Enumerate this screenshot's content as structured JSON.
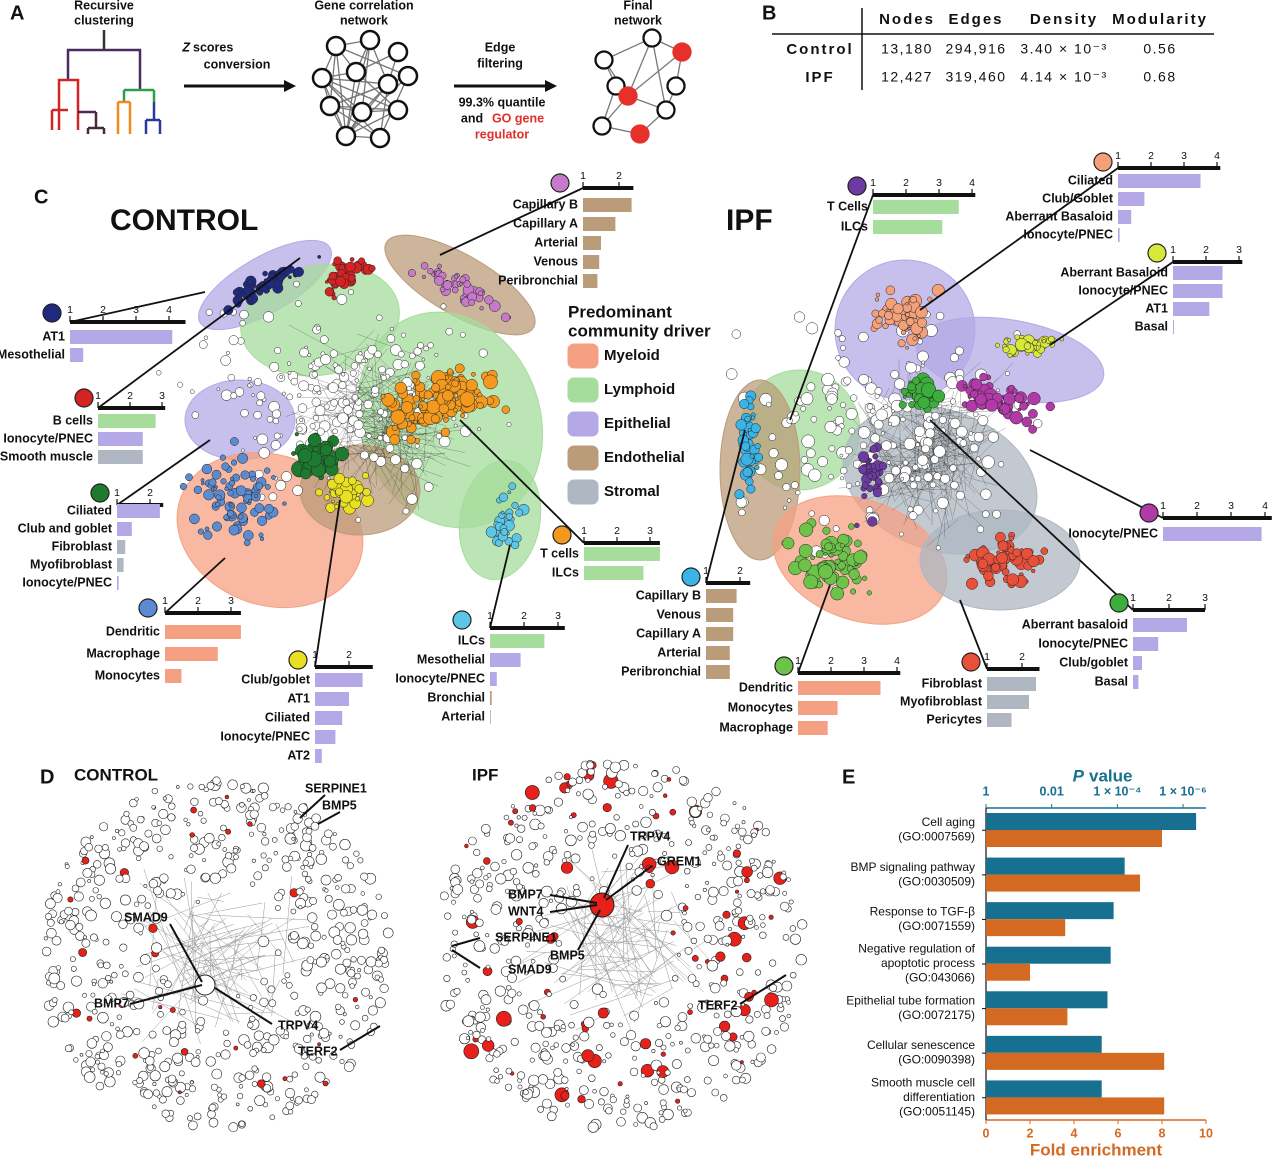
{
  "panel_labels": [
    "A",
    "B",
    "C",
    "D",
    "E"
  ],
  "panel_a": {
    "step1": [
      "Recursive",
      "clustering"
    ],
    "z_symbol": "Z",
    "z_rest": "scores",
    "conversion": "conversion",
    "step2": [
      "Gene correlation",
      "network"
    ],
    "edge_filtering": [
      "Edge",
      "filtering"
    ],
    "quantile": "99.3% quantile",
    "and": "and",
    "go": "GO gene",
    "regulator": "regulator",
    "final": [
      "Final",
      "network"
    ]
  },
  "table": {
    "headers": [
      "Nodes",
      "Edges",
      "Density",
      "Modularity"
    ],
    "rows": [
      [
        "Control",
        "13,180",
        "294,916",
        "3.40 × 10⁻³",
        "0.56"
      ],
      [
        "IPF",
        "12,427",
        "319,460",
        "4.14 × 10⁻³",
        "0.68"
      ]
    ]
  },
  "panel_c": {
    "titles": [
      "CONTROL",
      "IPF"
    ],
    "legend_title": [
      "Predominant",
      "community driver"
    ],
    "legend": [
      {
        "name": "Myeloid",
        "color": "#f6a083"
      },
      {
        "name": "Lymphoid",
        "color": "#a6dc9c"
      },
      {
        "name": "Epithelial",
        "color": "#b4a9e6"
      },
      {
        "name": "Endothelial",
        "color": "#bb9c7a"
      },
      {
        "name": "Stromal",
        "color": "#aeb7c2"
      }
    ]
  },
  "panel_d": {
    "titles": [
      "CONTROL",
      "IPF"
    ],
    "control_genes": [
      "SERPINE1",
      "BMP5",
      "SMAD9",
      "BMP7",
      "TRPV4",
      "TERF2"
    ],
    "ipf_genes": [
      "TRPV4",
      "GREM1",
      "BMP7",
      "WNT4",
      "SERPINE1",
      "SMAD9",
      "BMP5",
      "TERF2"
    ]
  },
  "chart_data": [
    {
      "type": "inset",
      "community_color": "#1f2a80",
      "categories": [
        "AT1",
        "Mesothelial"
      ],
      "values": [
        4.1,
        1.4
      ],
      "colors": [
        "#b4a9e6",
        "#b4a9e6"
      ],
      "xlim": [
        1,
        4.5
      ],
      "xticks": [
        1,
        2,
        3,
        4
      ]
    },
    {
      "type": "inset",
      "community_color": "#d42323",
      "categories": [
        "B cells",
        "Ionocyte/PNEC",
        "Smooth muscle"
      ],
      "values": [
        2.8,
        2.4,
        2.4
      ],
      "colors": [
        "#a6dc9c",
        "#b4a9e6",
        "#aeb7c2"
      ],
      "xlim": [
        1,
        3.1
      ],
      "xticks": [
        1,
        2,
        3
      ]
    },
    {
      "type": "inset",
      "community_color": "#1e7a2e",
      "categories": [
        "Ciliated",
        "Club and goblet",
        "Fibroblast",
        "Myofibroblast",
        "Ionocyte/PNEC"
      ],
      "values": [
        2.3,
        1.45,
        1.25,
        1.2,
        1.05
      ],
      "colors": [
        "#b4a9e6",
        "#b4a9e6",
        "#aeb7c2",
        "#aeb7c2",
        "#b4a9e6"
      ],
      "xlim": [
        1,
        2.4
      ],
      "xticks": [
        1,
        2
      ]
    },
    {
      "type": "inset",
      "community_color": "#5b8bd0",
      "categories": [
        "Dendritic",
        "Macrophage",
        "Monocytes"
      ],
      "values": [
        3.3,
        2.6,
        1.5
      ],
      "colors": [
        "#f6a083",
        "#f6a083",
        "#f6a083"
      ],
      "xlim": [
        1,
        3.3
      ],
      "xticks": [
        1,
        2,
        3
      ]
    },
    {
      "type": "inset",
      "community_color": "#e8e020",
      "categories": [
        "Club/goblet",
        "AT1",
        "Ciliated",
        "Ionocyte/PNEC",
        "AT2"
      ],
      "values": [
        2.4,
        2.0,
        1.8,
        1.6,
        1.2
      ],
      "colors": [
        "#b4a9e6",
        "#b4a9e6",
        "#b4a9e6",
        "#b4a9e6",
        "#b4a9e6"
      ],
      "xlim": [
        1,
        2.7
      ],
      "xticks": [
        1,
        2
      ]
    },
    {
      "type": "inset",
      "community_color": "#5cc6e6",
      "categories": [
        "ILCs",
        "Mesothelial",
        "Ionocyte/PNEC",
        "Bronchial",
        "Arterial"
      ],
      "values": [
        2.6,
        1.9,
        1.2,
        1.05,
        1.02
      ],
      "colors": [
        "#a6dc9c",
        "#b4a9e6",
        "#b4a9e6",
        "#bb9c7a",
        "#bb9c7a"
      ],
      "xlim": [
        1,
        3.2
      ],
      "xticks": [
        1,
        2,
        3
      ]
    },
    {
      "type": "inset",
      "community_color": "#f39a1e",
      "categories": [
        "T cells",
        "ILCs"
      ],
      "values": [
        3.3,
        2.8
      ],
      "colors": [
        "#a6dc9c",
        "#a6dc9c"
      ],
      "xlim": [
        1,
        3.3
      ],
      "xticks": [
        1,
        2,
        3
      ]
    },
    {
      "type": "inset",
      "community_color": "#c77ac9",
      "categories": [
        "Capillary B",
        "Capillary A",
        "Arterial",
        "Venous",
        "Peribronchial"
      ],
      "values": [
        2.35,
        1.9,
        1.5,
        1.45,
        1.4
      ],
      "colors": [
        "#bb9c7a",
        "#bb9c7a",
        "#bb9c7a",
        "#bb9c7a",
        "#bb9c7a"
      ],
      "xlim": [
        1,
        2.4
      ],
      "xticks": [
        1,
        2
      ]
    },
    {
      "type": "inset",
      "community_color": "#6c3aa0",
      "categories": [
        "T Cells",
        "ILCs"
      ],
      "values": [
        3.6,
        3.1
      ],
      "colors": [
        "#a6dc9c",
        "#a6dc9c"
      ],
      "xlim": [
        1,
        4.1
      ],
      "xticks": [
        1,
        2,
        3,
        4
      ]
    },
    {
      "type": "inset",
      "community_color": "#f4a07a",
      "categories": [
        "Ciliated",
        "Club/Goblet",
        "Aberrant Basaloid",
        "Ionocyte/PNEC"
      ],
      "values": [
        3.5,
        1.8,
        1.4,
        1.05
      ],
      "colors": [
        "#b4a9e6",
        "#b4a9e6",
        "#b4a9e6",
        "#b4a9e6"
      ],
      "xlim": [
        1,
        4.1
      ],
      "xticks": [
        1,
        2,
        3,
        4
      ]
    },
    {
      "type": "inset",
      "community_color": "#d8e83a",
      "categories": [
        "Aberrant Basaloid",
        "Ionocyte/PNEC",
        "AT1",
        "Basal"
      ],
      "values": [
        2.5,
        2.5,
        2.1,
        1.03
      ],
      "colors": [
        "#b4a9e6",
        "#b4a9e6",
        "#b4a9e6",
        "#b4a9e6"
      ],
      "xlim": [
        1,
        3.1
      ],
      "xticks": [
        1,
        2,
        3
      ]
    },
    {
      "type": "inset",
      "community_color": "#b23aa8",
      "categories": [
        "Ionocyte/PNEC"
      ],
      "values": [
        3.9
      ],
      "colors": [
        "#b4a9e6"
      ],
      "xlim": [
        1,
        4.2
      ],
      "xticks": [
        1,
        2,
        3,
        4
      ]
    },
    {
      "type": "inset",
      "community_color": "#3cae3c",
      "categories": [
        "Aberrant basaloid",
        "Ionocyte/PNEC",
        "Club/goblet",
        "Basal"
      ],
      "values": [
        2.5,
        1.7,
        1.25,
        1.15
      ],
      "colors": [
        "#b4a9e6",
        "#b4a9e6",
        "#b4a9e6",
        "#b4a9e6"
      ],
      "xlim": [
        1,
        3
      ],
      "xticks": [
        1,
        2,
        3
      ]
    },
    {
      "type": "inset",
      "community_color": "#e8503a",
      "categories": [
        "Fibroblast",
        "Myofibroblast",
        "Pericytes"
      ],
      "values": [
        2.4,
        2.2,
        1.7
      ],
      "colors": [
        "#aeb7c2",
        "#aeb7c2",
        "#aeb7c2"
      ],
      "xlim": [
        1,
        2.5
      ],
      "xticks": [
        1,
        2
      ]
    },
    {
      "type": "inset",
      "community_color": "#6dc24a",
      "categories": [
        "Dendritic",
        "Monocytes",
        "Macrophage"
      ],
      "values": [
        3.5,
        2.2,
        1.9
      ],
      "colors": [
        "#f6a083",
        "#f6a083",
        "#f6a083"
      ],
      "xlim": [
        1,
        4.1
      ],
      "xticks": [
        1,
        2,
        3,
        4
      ]
    },
    {
      "type": "inset",
      "community_color": "#3ab4e6",
      "categories": [
        "Capillary B",
        "Venous",
        "Capillary A",
        "Arterial",
        "Peribronchial"
      ],
      "values": [
        1.9,
        1.8,
        1.8,
        1.7,
        1.7
      ],
      "colors": [
        "#bb9c7a",
        "#bb9c7a",
        "#bb9c7a",
        "#bb9c7a",
        "#bb9c7a"
      ],
      "xlim": [
        1,
        2.3
      ],
      "xticks": [
        1,
        2
      ]
    },
    {
      "type": "enrichment",
      "categories": [
        [
          "Cell aging",
          "(GO:0007569)"
        ],
        [
          "BMP signaling pathway",
          "(GO:0030509)"
        ],
        [
          "Response to TGF-β",
          "(GO:0071559)"
        ],
        [
          "Negative regulation of",
          "apoptotic process",
          "(GO:043066)"
        ],
        [
          "Epithelial tube formation",
          "(GO:0072175)"
        ],
        [
          "Cellular senescence",
          "(GO:0090398)"
        ],
        [
          "Smooth muscle cell",
          "differentiation",
          "(GO:0051145)"
        ]
      ],
      "series": [
        {
          "axis": "x2",
          "color": "#17708f",
          "values": [
            4e-07,
            6e-05,
            0.00013,
            0.00016,
            0.0002,
            0.0003,
            0.0003
          ]
        },
        {
          "color": "#d46a22",
          "values": [
            8.0,
            7.0,
            3.6,
            2.0,
            3.7,
            8.1,
            8.1
          ]
        }
      ],
      "xlabel": "Fold enrichment",
      "xlim": [
        0,
        10
      ],
      "xticks": [
        0,
        2,
        4,
        6,
        8,
        10
      ],
      "x2label_symbol": "P",
      "x2label": "value",
      "x2scale": "log",
      "x2lim": [
        1,
        2e-07
      ],
      "x2ticks": [
        1,
        0.01,
        {
          "value": 0.0001,
          "label": "1 × 10⁻⁴"
        },
        {
          "value": 1e-06,
          "label": "1 × 10⁻⁶"
        }
      ]
    }
  ]
}
